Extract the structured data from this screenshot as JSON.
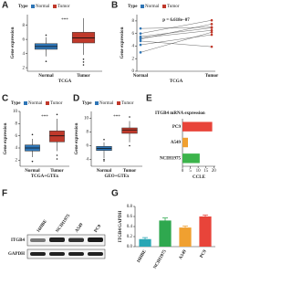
{
  "panels": [
    "A",
    "B",
    "C",
    "D",
    "E",
    "F",
    "G"
  ],
  "blot": {
    "lanes": [
      "16HBE",
      "NCIH1975",
      "A549",
      "PC9"
    ],
    "rows": [
      "ITGB4",
      "GAPDH"
    ]
  },
  "chart_data": [
    {
      "type": "box",
      "legend_title": "Type",
      "ylabel": "Gene expression",
      "xlabel": "TCGA",
      "annotation": "***",
      "ylim": [
        1.5,
        9.5
      ],
      "yticks": [
        2,
        4,
        6,
        8
      ],
      "series": [
        {
          "name": "Normal",
          "color": "#2e75b6",
          "values": [
            3.6,
            4.6,
            5.0,
            5.4,
            6.3
          ],
          "outliers": [
            2.9,
            6.6
          ]
        },
        {
          "name": "Tumor",
          "color": "#c0392b",
          "values": [
            3.8,
            5.5,
            6.2,
            7.0,
            9.0
          ],
          "outliers": [
            3.2,
            2.8,
            2.4
          ]
        }
      ]
    },
    {
      "type": "paired",
      "legend_title": "Type",
      "ylabel": "Gene expression",
      "xlabel": "TCGA",
      "annotation": "p = 6.618e−07",
      "ylim": [
        0,
        9
      ],
      "yticks": [
        0,
        2,
        4,
        6,
        8
      ],
      "series": [
        {
          "name": "Normal",
          "color": "#2e75b6",
          "values": [
            3.0,
            4.2,
            5.1,
            5.5,
            6.0,
            6.8,
            4.8,
            5.3
          ]
        },
        {
          "name": "Tumor",
          "color": "#c0392b",
          "values": [
            6.2,
            5.8,
            7.5,
            6.9,
            8.1,
            7.0,
            3.9,
            6.5
          ]
        }
      ]
    },
    {
      "type": "box",
      "legend_title": "Type",
      "ylabel": "Gene expression",
      "xlabel": "TCGA+GTEx",
      "annotation": "***",
      "ylim": [
        1,
        10
      ],
      "yticks": [
        2,
        4,
        6,
        8,
        10
      ],
      "series": [
        {
          "name": "Normal",
          "color": "#2e75b6",
          "values": [
            2.5,
            3.5,
            4.0,
            4.5,
            5.5
          ],
          "outliers": [
            1.8,
            6.2
          ]
        },
        {
          "name": "Tumor",
          "color": "#c0392b",
          "values": [
            3.5,
            5.0,
            6.0,
            6.8,
            8.8
          ],
          "outliers": [
            2.8,
            2.2,
            9.5
          ]
        }
      ]
    },
    {
      "type": "box",
      "legend_title": "Type",
      "ylabel": "Gene expression",
      "xlabel": "GEO+GTEx",
      "annotation": "***",
      "ylim": [
        3,
        11
      ],
      "yticks": [
        4,
        6,
        8,
        10
      ],
      "series": [
        {
          "name": "Normal",
          "color": "#2e75b6",
          "values": [
            4.2,
            5.3,
            5.6,
            5.9,
            6.5
          ],
          "outliers": [
            4.0,
            3.8,
            6.9
          ]
        },
        {
          "name": "Tumor",
          "color": "#c0392b",
          "values": [
            6.5,
            7.8,
            8.3,
            8.6,
            9.6
          ],
          "outliers": [
            10.2,
            6.0
          ]
        }
      ]
    },
    {
      "type": "hbar",
      "title": "ITGB4 mRNA expression",
      "xlabel": "CCLE",
      "categories": [
        "PC9",
        "A549",
        "NCIH1975"
      ],
      "values": [
        19,
        3.5,
        11
      ],
      "colors": [
        "#e8443a",
        "#f0a030",
        "#3cb44b"
      ],
      "xlim": [
        0,
        21
      ],
      "xticks": [
        0,
        5,
        10,
        15,
        20
      ]
    },
    {
      "type": "bar",
      "ylabel": "ITGB4/GAPDH",
      "categories": [
        "16HBE",
        "NCIH1975",
        "A549",
        "PC9"
      ],
      "values": [
        0.15,
        0.52,
        0.38,
        0.6
      ],
      "errors": [
        0.03,
        0.05,
        0.03,
        0.03
      ],
      "colors": [
        "#2aa7b5",
        "#2fa84f",
        "#f0a030",
        "#e8443a"
      ],
      "ylim": [
        0,
        0.8
      ],
      "yticks": [
        {
          "value": 0,
          "label": "0.0"
        },
        0.2,
        0.4,
        0.6,
        0.8
      ]
    }
  ]
}
